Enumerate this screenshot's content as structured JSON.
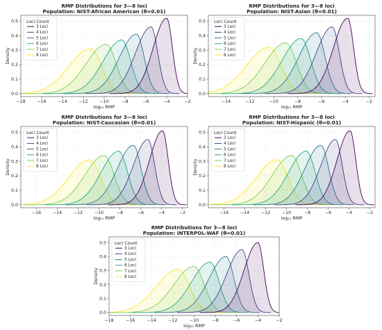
{
  "chart_data": [
    {
      "type": "area",
      "title": "RMP Distributions for 3—8 loci",
      "subtitle": "Population: NIST-African American (θ=0.01)",
      "xlabel": "log₁₀ RMP",
      "ylabel": "Density",
      "xlim": [
        -18,
        -2
      ],
      "ylim": [
        -0.02,
        0.54
      ],
      "xticks": [
        -18,
        -16,
        -14,
        -12,
        -10,
        -8,
        -6,
        -4,
        -2
      ],
      "yticks": [
        0.0,
        0.1,
        0.2,
        0.3,
        0.4,
        0.5
      ],
      "grid": true,
      "legend": {
        "title": "Loci Count",
        "position": "top-left"
      },
      "series": [
        {
          "name": "3 Loci",
          "color": "#440154",
          "peak_x": -4.0,
          "peak_y": 0.52,
          "left_width": 1.3,
          "right_width": 0.55
        },
        {
          "name": "4 Loci",
          "color": "#414487",
          "peak_x": -5.5,
          "peak_y": 0.46,
          "left_width": 1.5,
          "right_width": 0.65
        },
        {
          "name": "5 Loci",
          "color": "#2a788e",
          "peak_x": -6.9,
          "peak_y": 0.41,
          "left_width": 1.65,
          "right_width": 0.75
        },
        {
          "name": "6 Loci",
          "color": "#22a884",
          "peak_x": -8.3,
          "peak_y": 0.37,
          "left_width": 1.8,
          "right_width": 0.85
        },
        {
          "name": "7 Loci",
          "color": "#7ad151",
          "peak_x": -9.8,
          "peak_y": 0.34,
          "left_width": 1.95,
          "right_width": 0.95
        },
        {
          "name": "8 Loci",
          "color": "#fde725",
          "peak_x": -11.3,
          "peak_y": 0.31,
          "left_width": 2.1,
          "right_width": 1.05
        }
      ]
    },
    {
      "type": "area",
      "title": "RMP Distributions for 3—8 loci",
      "subtitle": "Population: NIST-Asian (θ=0.01)",
      "xlabel": "log₁₀ RMP",
      "ylabel": "Density",
      "xlim": [
        -15.5,
        -1.5
      ],
      "ylim": [
        -0.02,
        0.54
      ],
      "xticks": [
        -14,
        -12,
        -10,
        -8,
        -6,
        -4,
        -2
      ],
      "yticks": [
        0.0,
        0.1,
        0.2,
        0.3,
        0.4,
        0.5
      ],
      "grid": true,
      "legend": {
        "title": "Loci Count",
        "position": "top-left"
      },
      "series": [
        {
          "name": "3 Loci",
          "color": "#440154",
          "peak_x": -3.8,
          "peak_y": 0.52,
          "left_width": 1.2,
          "right_width": 0.5
        },
        {
          "name": "4 Loci",
          "color": "#414487",
          "peak_x": -5.1,
          "peak_y": 0.46,
          "left_width": 1.35,
          "right_width": 0.6
        },
        {
          "name": "5 Loci",
          "color": "#2a788e",
          "peak_x": -6.4,
          "peak_y": 0.42,
          "left_width": 1.5,
          "right_width": 0.7
        },
        {
          "name": "6 Loci",
          "color": "#22a884",
          "peak_x": -7.7,
          "peak_y": 0.38,
          "left_width": 1.6,
          "right_width": 0.8
        },
        {
          "name": "7 Loci",
          "color": "#7ad151",
          "peak_x": -9.0,
          "peak_y": 0.35,
          "left_width": 1.75,
          "right_width": 0.9
        },
        {
          "name": "8 Loci",
          "color": "#fde725",
          "peak_x": -10.4,
          "peak_y": 0.32,
          "left_width": 1.9,
          "right_width": 1.0
        }
      ]
    },
    {
      "type": "area",
      "title": "RMP Distributions for 3—8 loci",
      "subtitle": "Population: NIST-Caucasian (θ=0.01)",
      "xlabel": "log₁₀ RMP",
      "ylabel": "Density",
      "xlim": [
        -17.5,
        -1.5
      ],
      "ylim": [
        -0.02,
        0.54
      ],
      "xticks": [
        -16,
        -14,
        -12,
        -10,
        -8,
        -6,
        -4,
        -2
      ],
      "yticks": [
        0.0,
        0.1,
        0.2,
        0.3,
        0.4,
        0.5
      ],
      "grid": true,
      "legend": {
        "title": "Loci Count",
        "position": "top-left"
      },
      "series": [
        {
          "name": "3 Loci",
          "color": "#440154",
          "peak_x": -3.9,
          "peak_y": 0.51,
          "left_width": 1.25,
          "right_width": 0.55
        },
        {
          "name": "4 Loci",
          "color": "#414487",
          "peak_x": -5.3,
          "peak_y": 0.45,
          "left_width": 1.4,
          "right_width": 0.65
        },
        {
          "name": "5 Loci",
          "color": "#2a788e",
          "peak_x": -6.7,
          "peak_y": 0.41,
          "left_width": 1.55,
          "right_width": 0.75
        },
        {
          "name": "6 Loci",
          "color": "#22a884",
          "peak_x": -8.1,
          "peak_y": 0.37,
          "left_width": 1.7,
          "right_width": 0.85
        },
        {
          "name": "7 Loci",
          "color": "#7ad151",
          "peak_x": -9.5,
          "peak_y": 0.34,
          "left_width": 1.85,
          "right_width": 0.95
        },
        {
          "name": "8 Loci",
          "color": "#fde725",
          "peak_x": -10.9,
          "peak_y": 0.31,
          "left_width": 2.0,
          "right_width": 1.05
        }
      ]
    },
    {
      "type": "area",
      "title": "RMP Distributions for 3—8 loci",
      "subtitle": "Population: NIST-Hispanic (θ=0.01)",
      "xlabel": "log₁₀ RMP",
      "ylabel": "Density",
      "xlim": [
        -17.5,
        -1.5
      ],
      "ylim": [
        -0.02,
        0.54
      ],
      "xticks": [
        -16,
        -14,
        -12,
        -10,
        -8,
        -6,
        -4,
        -2
      ],
      "yticks": [
        0.0,
        0.1,
        0.2,
        0.3,
        0.4,
        0.5
      ],
      "grid": true,
      "legend": {
        "title": "Loci Count",
        "position": "top-left"
      },
      "series": [
        {
          "name": "3 Loci",
          "color": "#440154",
          "peak_x": -3.9,
          "peak_y": 0.51,
          "left_width": 1.25,
          "right_width": 0.55
        },
        {
          "name": "4 Loci",
          "color": "#414487",
          "peak_x": -5.3,
          "peak_y": 0.45,
          "left_width": 1.4,
          "right_width": 0.65
        },
        {
          "name": "5 Loci",
          "color": "#2a788e",
          "peak_x": -6.7,
          "peak_y": 0.41,
          "left_width": 1.55,
          "right_width": 0.75
        },
        {
          "name": "6 Loci",
          "color": "#22a884",
          "peak_x": -8.1,
          "peak_y": 0.37,
          "left_width": 1.7,
          "right_width": 0.85
        },
        {
          "name": "7 Loci",
          "color": "#7ad151",
          "peak_x": -9.5,
          "peak_y": 0.34,
          "left_width": 1.85,
          "right_width": 0.95
        },
        {
          "name": "8 Loci",
          "color": "#fde725",
          "peak_x": -10.9,
          "peak_y": 0.31,
          "left_width": 2.0,
          "right_width": 1.05
        }
      ]
    },
    {
      "type": "area",
      "title": "RMP Distributions for 3—8 loci",
      "subtitle": "Population: INTERPOL-WAF (θ=0.01)",
      "xlabel": "log₁₀ RMP",
      "ylabel": "Density",
      "xlim": [
        -18,
        -2
      ],
      "ylim": [
        -0.02,
        0.54
      ],
      "xticks": [
        -18,
        -16,
        -14,
        -12,
        -10,
        -8,
        -6,
        -4,
        -2
      ],
      "yticks": [
        0.0,
        0.1,
        0.2,
        0.3,
        0.4,
        0.5
      ],
      "grid": true,
      "legend": {
        "title": "Loci Count",
        "position": "top-left"
      },
      "series": [
        {
          "name": "3 Loci",
          "color": "#440154",
          "peak_x": -4.0,
          "peak_y": 0.5,
          "left_width": 1.3,
          "right_width": 0.55
        },
        {
          "name": "4 Loci",
          "color": "#414487",
          "peak_x": -5.5,
          "peak_y": 0.45,
          "left_width": 1.45,
          "right_width": 0.65
        },
        {
          "name": "5 Loci",
          "color": "#2a788e",
          "peak_x": -7.0,
          "peak_y": 0.4,
          "left_width": 1.6,
          "right_width": 0.75
        },
        {
          "name": "6 Loci",
          "color": "#22a884",
          "peak_x": -8.5,
          "peak_y": 0.36,
          "left_width": 1.75,
          "right_width": 0.85
        },
        {
          "name": "7 Loci",
          "color": "#7ad151",
          "peak_x": -10.0,
          "peak_y": 0.33,
          "left_width": 1.9,
          "right_width": 0.95
        },
        {
          "name": "8 Loci",
          "color": "#fde725",
          "peak_x": -11.5,
          "peak_y": 0.31,
          "left_width": 2.05,
          "right_width": 1.05
        }
      ]
    }
  ]
}
